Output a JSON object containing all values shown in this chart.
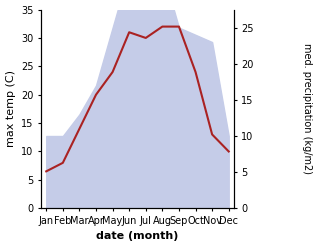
{
  "months": [
    "Jan",
    "Feb",
    "Mar",
    "Apr",
    "May",
    "Jun",
    "Jul",
    "Aug",
    "Sep",
    "Oct",
    "Nov",
    "Dec"
  ],
  "temperature": [
    6.5,
    8.0,
    14.0,
    20.0,
    24.0,
    31.0,
    30.0,
    32.0,
    32.0,
    24.0,
    13.0,
    10.0
  ],
  "precipitation": [
    10,
    10,
    13,
    17,
    25,
    33,
    30,
    33,
    25,
    24,
    23,
    10
  ],
  "temp_ylim": [
    0,
    35
  ],
  "precip_ylim": [
    0,
    27.5
  ],
  "right_yticks": [
    0,
    5,
    10,
    15,
    20,
    25
  ],
  "left_yticks": [
    0,
    5,
    10,
    15,
    20,
    25,
    30,
    35
  ],
  "temp_color": "#aa2222",
  "precip_fill_color": "#c5cce8",
  "xlabel": "date (month)",
  "ylabel_left": "max temp (C)",
  "ylabel_right": "med. precipitation (kg/m2)",
  "linewidth": 1.5
}
